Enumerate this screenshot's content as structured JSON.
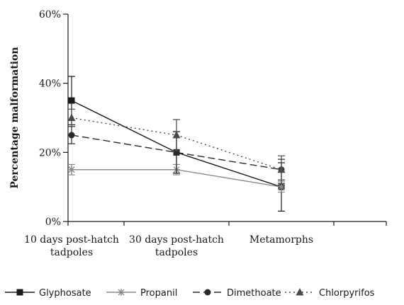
{
  "chart_data": {
    "type": "line",
    "categories": [
      [
        "10 days post-hatch",
        "tadpoles"
      ],
      [
        "30 days post-hatch",
        "tadpoles"
      ],
      [
        "Metamorphs"
      ]
    ],
    "ylabel": "Percentage malformation",
    "ylim": [
      0,
      60
    ],
    "yticks": [
      0,
      20,
      40,
      60
    ],
    "ytick_labels": [
      "0%",
      "20%",
      "40%",
      "60%"
    ],
    "grid": false,
    "legend_position": "bottom",
    "series": [
      {
        "name": "Glyphosate",
        "values": [
          35,
          20,
          10
        ],
        "errors": [
          7,
          6,
          7
        ],
        "color": "#1a1a1a",
        "dash": "solid",
        "marker": "square"
      },
      {
        "name": "Propanil",
        "values": [
          15,
          15,
          10
        ],
        "errors": [
          1.5,
          1.5,
          1.5
        ],
        "color": "#8a8a8a",
        "dash": "solid",
        "marker": "asterisk"
      },
      {
        "name": "Dimethoate",
        "values": [
          25,
          20,
          15
        ],
        "errors": [
          2.5,
          6,
          3
        ],
        "color": "#2a2a2a",
        "dash": "dashed",
        "marker": "circle"
      },
      {
        "name": "Chlorpyrifos",
        "values": [
          30,
          25,
          15
        ],
        "errors": [
          2.5,
          4.5,
          4
        ],
        "color": "#4a4a4a",
        "dash": "dotted",
        "marker": "triangle"
      }
    ]
  }
}
